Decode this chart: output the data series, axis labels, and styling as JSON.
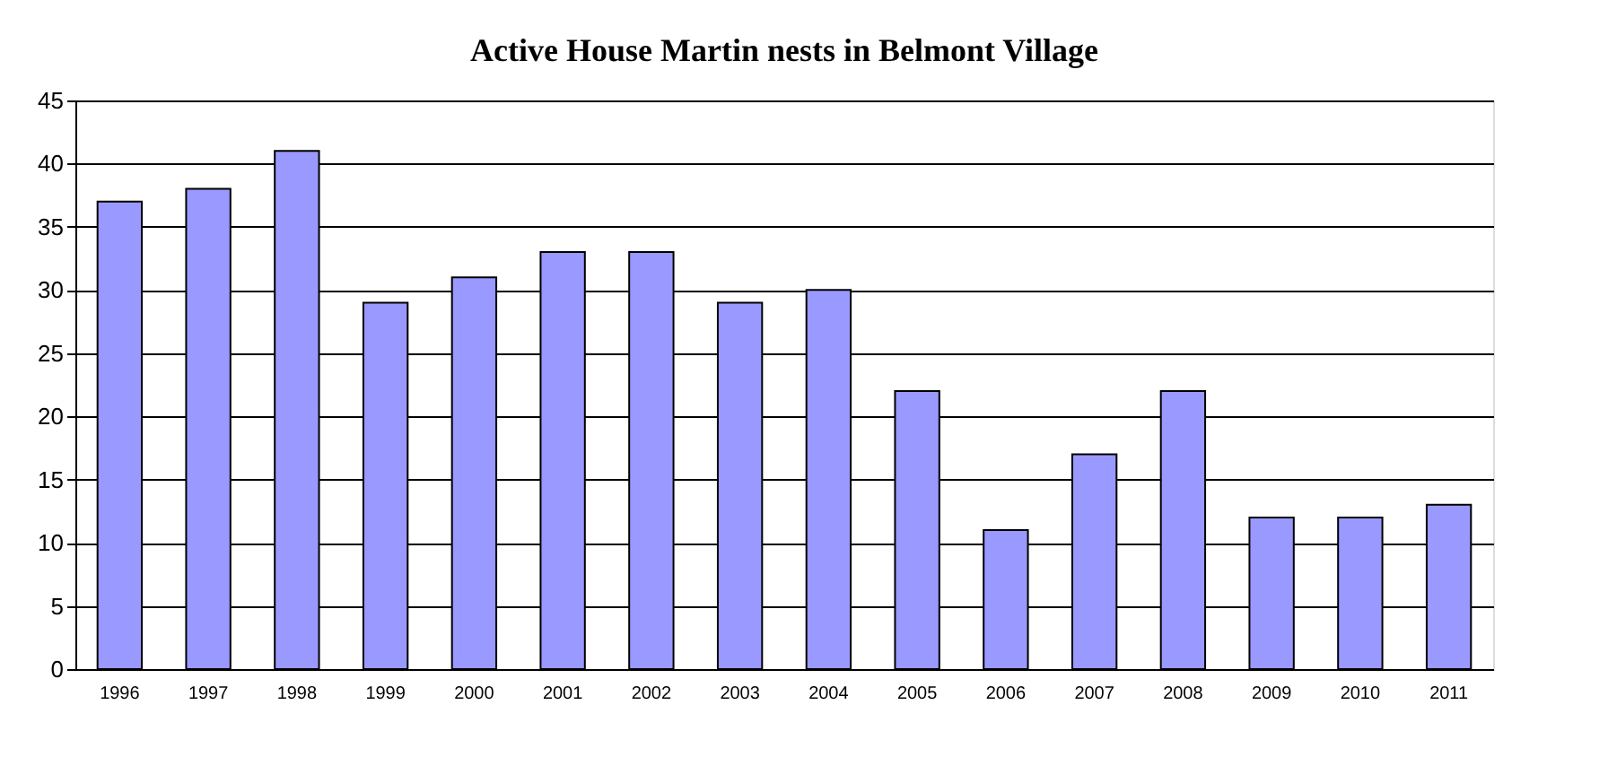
{
  "chart_data": {
    "type": "bar",
    "title": "Active House Martin nests in Belmont Village",
    "categories": [
      "1996",
      "1997",
      "1998",
      "1999",
      "2000",
      "2001",
      "2002",
      "2003",
      "2004",
      "2005",
      "2006",
      "2007",
      "2008",
      "2009",
      "2010",
      "2011"
    ],
    "values": [
      37,
      38,
      41,
      29,
      31,
      33,
      33,
      29,
      30,
      22,
      11,
      17,
      22,
      12,
      12,
      13
    ],
    "color": "#9999ff",
    "ylim": [
      0,
      45
    ],
    "yticks": [
      0,
      5,
      10,
      15,
      20,
      25,
      30,
      35,
      40,
      45
    ],
    "grid": "y"
  }
}
